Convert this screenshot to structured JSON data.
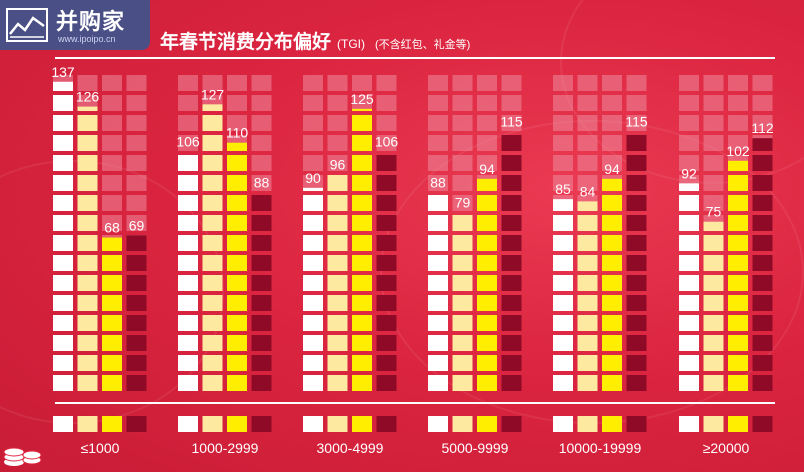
{
  "header": {
    "logo_text": "并购家",
    "logo_url": "www.ipoipo.cn",
    "title": "年春节消费分布偏好",
    "title_tgi": "(TGI)",
    "title_note": "(不含红包、礼金等)"
  },
  "colors": {
    "background": "#e0263f",
    "series": [
      "#ffffff",
      "#fde9a0",
      "#ffee00",
      "#8e0a26"
    ],
    "empty_cell": "#ef8a9d"
  },
  "icons": [
    "chart-logo-icon",
    "coins-icon"
  ],
  "chart_data": {
    "type": "bar",
    "categories": [
      "≤1000",
      "1000-2999",
      "3000-4999",
      "5000-9999",
      "10000-19999",
      "≥20000"
    ],
    "series": [
      {
        "values": [
          137,
          106,
          90,
          88,
          85,
          92
        ]
      },
      {
        "values": [
          126,
          127,
          96,
          79,
          84,
          75
        ]
      },
      {
        "values": [
          68,
          110,
          125,
          94,
          94,
          102
        ]
      },
      {
        "values": [
          69,
          88,
          106,
          115,
          115,
          112
        ]
      }
    ],
    "ylim": [
      0,
      140
    ],
    "grid": false,
    "legend": "none"
  }
}
